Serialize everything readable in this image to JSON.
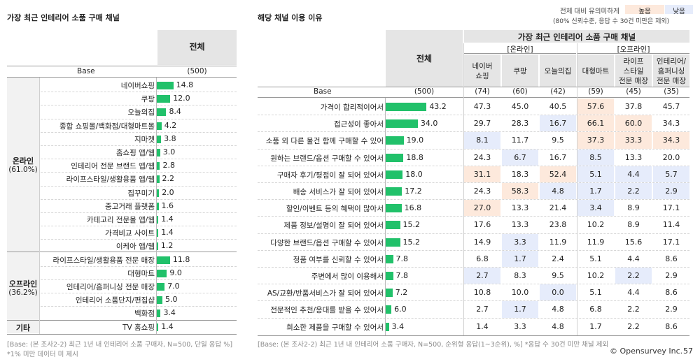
{
  "left": {
    "title": "가장 최근 인테리어 소품 구매 채널",
    "header": "전체",
    "base_label": "Base",
    "base_value": "(500)",
    "groups": [
      {
        "name": "온라인",
        "pct": "(61.0%)"
      },
      {
        "name": "오프라인",
        "pct": "(36.2%)"
      },
      {
        "name": "기타",
        "pct": ""
      }
    ],
    "rows": [
      {
        "label": "네이버쇼핑",
        "value": 14.8,
        "text": "14.8"
      },
      {
        "label": "쿠팡",
        "value": 12.0,
        "text": "12.0"
      },
      {
        "label": "오늘의집",
        "value": 8.4,
        "text": "8.4"
      },
      {
        "label": "종합 쇼핑몰/백화점/대형마트몰",
        "value": 4.2,
        "text": "4.2"
      },
      {
        "label": "지마켓",
        "value": 3.8,
        "text": "3.8"
      },
      {
        "label": "홈쇼핑 앱/웹",
        "value": 3.0,
        "text": "3.0"
      },
      {
        "label": "인테리어 전문 브랜드 앱/웹",
        "value": 2.8,
        "text": "2.8"
      },
      {
        "label": "라이프스타일/생활용품 앱/웹",
        "value": 2.2,
        "text": "2.2"
      },
      {
        "label": "집꾸미기",
        "value": 2.0,
        "text": "2.0"
      },
      {
        "label": "중고거래 플랫폼",
        "value": 1.6,
        "text": "1.6"
      },
      {
        "label": "카테고리 전문몰 앱/웹",
        "value": 1.4,
        "text": "1.4"
      },
      {
        "label": "가격비교 사이트",
        "value": 1.4,
        "text": "1.4"
      },
      {
        "label": "이케아 앱/웹",
        "value": 1.2,
        "text": "1.2"
      },
      {
        "label": "라이프스타일/생활용품 전문 매장",
        "value": 11.8,
        "text": "11.8"
      },
      {
        "label": "대형마트",
        "value": 9.0,
        "text": "9.0"
      },
      {
        "label": "인테리어/홈퍼니싱 전문 매장",
        "value": 7.0,
        "text": "7.0"
      },
      {
        "label": "인테리어 소품단지/편집샵",
        "value": 5.0,
        "text": "5.0"
      },
      {
        "label": "백화점",
        "value": 3.4,
        "text": "3.4"
      },
      {
        "label": "TV 홈쇼핑",
        "value": 1.4,
        "text": "1.4"
      }
    ],
    "footnote1": "[Base: (본 조사2-2) 최근 1년 내 인테리어 소품 구매자, N=500, 단일 응답 %]",
    "footnote2": "*1% 미만 데이터 미 제시"
  },
  "right": {
    "title": "해당 채널 이용 이유",
    "legend_caption": "전체 대비 유의미하게",
    "legend_note": "(80% 신뢰수준, 응답 수 30건 미만은 제외)",
    "legend_high": "높음",
    "legend_low": "낮음",
    "colors": {
      "high": "#fde9dc",
      "low": "#e6ecfb",
      "bar": "#21c16a"
    },
    "header_total": "전체",
    "header_group": "가장 최근 인테리어 소품 구매 채널",
    "online_label": "[온라인]",
    "offline_label": "[오프라인]",
    "channels": [
      {
        "name_l1": "네이버",
        "name_l2": "쇼핑",
        "name_l3": "",
        "base": "(74)"
      },
      {
        "name_l1": "쿠팡",
        "name_l2": "",
        "name_l3": "",
        "base": "(60)"
      },
      {
        "name_l1": "오늘의집",
        "name_l2": "",
        "name_l3": "",
        "base": "(42)"
      },
      {
        "name_l1": "대형마트",
        "name_l2": "",
        "name_l3": "",
        "base": "(59)"
      },
      {
        "name_l1": "라이프",
        "name_l2": "스타일",
        "name_l3": "전문 매장",
        "base": "(45)"
      },
      {
        "name_l1": "인테리어/",
        "name_l2": "홈퍼니싱",
        "name_l3": "전문 매장",
        "base": "(35)"
      }
    ],
    "base_label": "Base",
    "base_total": "(500)",
    "rows": [
      {
        "label": "가격이 합리적이어서",
        "total": 43.2,
        "total_text": "43.2",
        "cells": [
          "47.3",
          "45.0",
          "40.5",
          "57.6",
          "37.8",
          "45.7"
        ],
        "marks": [
          "",
          "",
          "",
          "h",
          "",
          ""
        ]
      },
      {
        "label": "접근성이 좋아서",
        "total": 34.0,
        "total_text": "34.0",
        "cells": [
          "29.7",
          "28.3",
          "16.7",
          "66.1",
          "60.0",
          "34.3"
        ],
        "marks": [
          "",
          "",
          "l",
          "h",
          "h",
          ""
        ]
      },
      {
        "label": "소품 외 다른 물건 함께 구매할 수 있어",
        "total": 19.0,
        "total_text": "19.0",
        "cells": [
          "8.1",
          "11.7",
          "9.5",
          "37.3",
          "33.3",
          "34.3"
        ],
        "marks": [
          "l",
          "",
          "",
          "h",
          "h",
          "h"
        ]
      },
      {
        "label": "원하는 브랜드/옵션 구매할 수 있어서",
        "total": 18.8,
        "total_text": "18.8",
        "cells": [
          "24.3",
          "6.7",
          "16.7",
          "8.5",
          "13.3",
          "20.0"
        ],
        "marks": [
          "",
          "l",
          "",
          "l",
          "",
          ""
        ]
      },
      {
        "label": "구매자 후기/평점이 잘 되어 있어서",
        "total": 18.0,
        "total_text": "18.0",
        "cells": [
          "31.1",
          "18.3",
          "52.4",
          "5.1",
          "4.4",
          "5.7"
        ],
        "marks": [
          "h",
          "",
          "h",
          "l",
          "l",
          "l"
        ]
      },
      {
        "label": "배송 서비스가 잘 되어 있어서",
        "total": 17.2,
        "total_text": "17.2",
        "cells": [
          "24.3",
          "58.3",
          "4.8",
          "1.7",
          "2.2",
          "2.9"
        ],
        "marks": [
          "",
          "h",
          "l",
          "l",
          "l",
          "l"
        ]
      },
      {
        "label": "할인/이벤트 등의 혜택이 많아서",
        "total": 16.8,
        "total_text": "16.8",
        "cells": [
          "27.0",
          "13.3",
          "21.4",
          "3.4",
          "8.9",
          "17.1"
        ],
        "marks": [
          "h",
          "",
          "",
          "l",
          "",
          ""
        ]
      },
      {
        "label": "제품 정보/설명이 잘 되어 있어서",
        "total": 15.2,
        "total_text": "15.2",
        "cells": [
          "17.6",
          "13.3",
          "23.8",
          "10.2",
          "8.9",
          "11.4"
        ],
        "marks": [
          "",
          "",
          "",
          "",
          "",
          ""
        ]
      },
      {
        "label": "다양한 브랜드/옵션 구매할 수 있어서",
        "total": 15.2,
        "total_text": "15.2",
        "cells": [
          "14.9",
          "3.3",
          "11.9",
          "11.9",
          "15.6",
          "17.1"
        ],
        "marks": [
          "",
          "l",
          "",
          "",
          "",
          ""
        ]
      },
      {
        "label": "정품 여부를 신뢰할 수 있어서",
        "total": 7.8,
        "total_text": "7.8",
        "cells": [
          "6.8",
          "1.7",
          "2.4",
          "5.1",
          "4.4",
          "8.6"
        ],
        "marks": [
          "",
          "l",
          "",
          "",
          "",
          ""
        ]
      },
      {
        "label": "주변에서 많이 이용해서",
        "total": 7.8,
        "total_text": "7.8",
        "cells": [
          "2.7",
          "8.3",
          "9.5",
          "10.2",
          "2.2",
          "2.9"
        ],
        "marks": [
          "l",
          "",
          "",
          "",
          "l",
          ""
        ]
      },
      {
        "label": "AS/교환/반품서비스가 잘 되어 있어서",
        "total": 7.2,
        "total_text": "7.2",
        "cells": [
          "10.8",
          "10.0",
          "0.0",
          "5.1",
          "4.4",
          "8.6"
        ],
        "marks": [
          "",
          "",
          "l",
          "",
          "",
          ""
        ]
      },
      {
        "label": "전문적인 추천/응대를 받을 수 있어서",
        "total": 6.0,
        "total_text": "6.0",
        "cells": [
          "2.7",
          "1.7",
          "4.8",
          "6.8",
          "2.2",
          "2.9"
        ],
        "marks": [
          "",
          "l",
          "",
          "",
          "",
          ""
        ]
      },
      {
        "label": "희소한 제품을 구매할 수 있어서",
        "total": 3.4,
        "total_text": "3.4",
        "cells": [
          "1.4",
          "3.3",
          "4.8",
          "1.7",
          "2.2",
          "8.6"
        ],
        "marks": [
          "",
          "",
          "",
          "",
          "",
          ""
        ]
      }
    ],
    "footnote": "[Base: (본 조사2-2) 최근 1년 내 인테리어 소품 구매자, N=500, 순위형 응답(1~3순위), %] *응답 수 30건 미만 채널 제외"
  },
  "brand": "© Opensurvey Inc.",
  "page_number": "57"
}
